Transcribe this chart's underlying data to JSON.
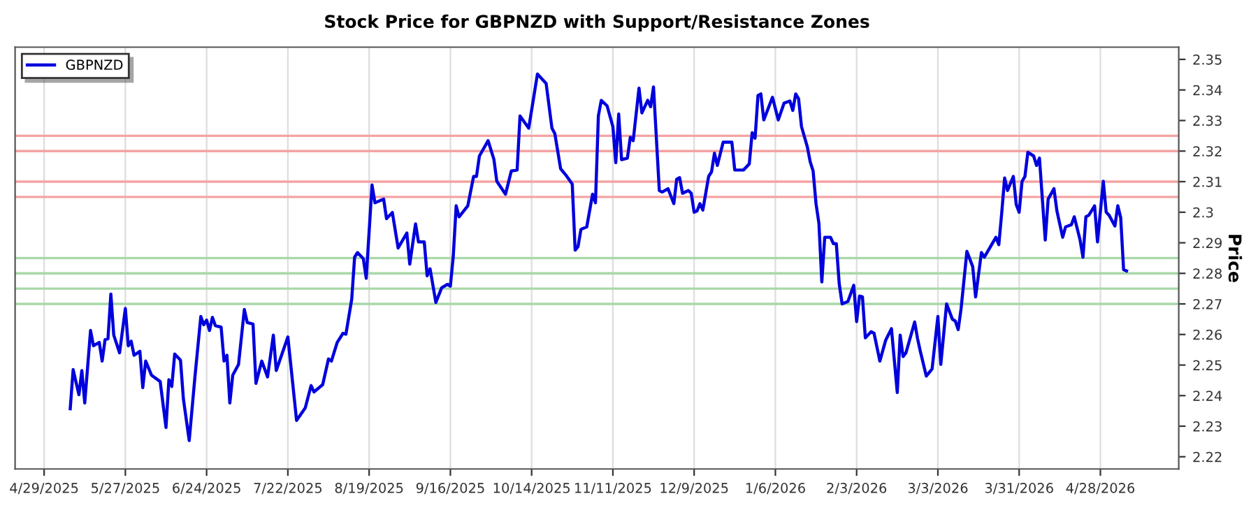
{
  "chart_data": {
    "type": "line",
    "title": "Stock Price for GBPNZD with Support/Resistance Zones",
    "ylabel": "Price",
    "x": [
      "2025-05-08",
      "2025-05-09",
      "2025-05-11",
      "2025-05-12",
      "2025-05-13",
      "2025-05-15",
      "2025-05-16",
      "2025-05-18",
      "2025-05-19",
      "2025-05-20",
      "2025-05-21",
      "2025-05-22",
      "2025-05-23",
      "2025-05-25",
      "2025-05-27",
      "2025-05-28",
      "2025-05-29",
      "2025-05-30",
      "2025-06-01",
      "2025-06-02",
      "2025-06-03",
      "2025-06-05",
      "2025-06-08",
      "2025-06-10",
      "2025-06-11",
      "2025-06-12",
      "2025-06-13",
      "2025-06-15",
      "2025-06-16",
      "2025-06-18",
      "2025-06-20",
      "2025-06-22",
      "2025-06-23",
      "2025-06-24",
      "2025-06-25",
      "2025-06-26",
      "2025-06-27",
      "2025-06-29",
      "2025-06-30",
      "2025-07-01",
      "2025-07-02",
      "2025-07-03",
      "2025-07-05",
      "2025-07-07",
      "2025-07-08",
      "2025-07-10",
      "2025-07-11",
      "2025-07-13",
      "2025-07-15",
      "2025-07-17",
      "2025-07-18",
      "2025-07-22",
      "2025-07-25",
      "2025-07-28",
      "2025-07-30",
      "2025-07-31",
      "2025-08-03",
      "2025-08-05",
      "2025-08-06",
      "2025-08-08",
      "2025-08-10",
      "2025-08-11",
      "2025-08-13",
      "2025-08-14",
      "2025-08-15",
      "2025-08-17",
      "2025-08-18",
      "2025-08-20",
      "2025-08-21",
      "2025-08-24",
      "2025-08-25",
      "2025-08-27",
      "2025-08-29",
      "2025-09-01",
      "2025-09-02",
      "2025-09-04",
      "2025-09-05",
      "2025-09-07",
      "2025-09-08",
      "2025-09-09",
      "2025-09-11",
      "2025-09-13",
      "2025-09-15",
      "2025-09-16",
      "2025-09-17",
      "2025-09-18",
      "2025-09-19",
      "2025-09-22",
      "2025-09-24",
      "2025-09-25",
      "2025-09-26",
      "2025-09-29",
      "2025-10-01",
      "2025-10-02",
      "2025-10-05",
      "2025-10-07",
      "2025-10-09",
      "2025-10-10",
      "2025-10-13",
      "2025-10-16",
      "2025-10-19",
      "2025-10-21",
      "2025-10-22",
      "2025-10-24",
      "2025-10-26",
      "2025-10-28",
      "2025-10-29",
      "2025-10-30",
      "2025-10-31",
      "2025-11-02",
      "2025-11-04",
      "2025-11-05",
      "2025-11-06",
      "2025-11-07",
      "2025-11-09",
      "2025-11-11",
      "2025-11-12",
      "2025-11-13",
      "2025-11-14",
      "2025-11-16",
      "2025-11-17",
      "2025-11-18",
      "2025-11-20",
      "2025-11-21",
      "2025-11-23",
      "2025-11-24",
      "2025-11-25",
      "2025-11-27",
      "2025-11-28",
      "2025-11-30",
      "2025-12-02",
      "2025-12-03",
      "2025-12-04",
      "2025-12-05",
      "2025-12-07",
      "2025-12-08",
      "2025-12-09",
      "2025-12-10",
      "2025-12-11",
      "2025-12-12",
      "2025-12-14",
      "2025-12-15",
      "2025-12-16",
      "2025-12-17",
      "2025-12-19",
      "2025-12-22",
      "2025-12-23",
      "2025-12-26",
      "2025-12-28",
      "2025-12-29",
      "2025-12-30",
      "2025-12-31",
      "2026-01-01",
      "2026-01-02",
      "2026-01-05",
      "2026-01-07",
      "2026-01-09",
      "2026-01-11",
      "2026-01-12",
      "2026-01-13",
      "2026-01-14",
      "2026-01-15",
      "2026-01-17",
      "2026-01-18",
      "2026-01-19",
      "2026-01-20",
      "2026-01-21",
      "2026-01-22",
      "2026-01-23",
      "2026-01-25",
      "2026-01-26",
      "2026-01-27",
      "2026-01-28",
      "2026-01-29",
      "2026-01-31",
      "2026-02-02",
      "2026-02-03",
      "2026-02-04",
      "2026-02-05",
      "2026-02-06",
      "2026-02-08",
      "2026-02-09",
      "2026-02-11",
      "2026-02-13",
      "2026-02-15",
      "2026-02-17",
      "2026-02-18",
      "2026-02-19",
      "2026-02-20",
      "2026-02-23",
      "2026-02-24",
      "2026-02-25",
      "2026-02-27",
      "2026-03-01",
      "2026-03-03",
      "2026-03-04",
      "2026-03-06",
      "2026-03-08",
      "2026-03-09",
      "2026-03-10",
      "2026-03-11",
      "2026-03-13",
      "2026-03-15",
      "2026-03-16",
      "2026-03-18",
      "2026-03-19",
      "2026-03-23",
      "2026-03-24",
      "2026-03-25",
      "2026-03-26",
      "2026-03-27",
      "2026-03-29",
      "2026-03-30",
      "2026-03-31",
      "2026-04-01",
      "2026-04-02",
      "2026-04-03",
      "2026-04-05",
      "2026-04-06",
      "2026-04-07",
      "2026-04-09",
      "2026-04-10",
      "2026-04-12",
      "2026-04-13",
      "2026-04-15",
      "2026-04-16",
      "2026-04-18",
      "2026-04-19",
      "2026-04-21",
      "2026-04-22",
      "2026-04-23",
      "2026-04-24",
      "2026-04-26",
      "2026-04-27",
      "2026-04-29",
      "2026-04-30",
      "2026-05-01",
      "2026-05-03",
      "2026-05-04",
      "2026-05-05",
      "2026-05-06",
      "2026-05-07"
    ],
    "series": [
      {
        "name": "GBPNZD",
        "color": "#0000dd",
        "values": [
          2.2357,
          2.2485,
          2.2403,
          2.2482,
          2.2376,
          2.2613,
          2.2563,
          2.2574,
          2.2513,
          2.2583,
          2.2586,
          2.2732,
          2.2598,
          2.254,
          2.2685,
          2.2563,
          2.2578,
          2.2532,
          2.2545,
          2.2426,
          2.2513,
          2.2467,
          2.2446,
          2.2296,
          2.2452,
          2.243,
          2.2536,
          2.2516,
          2.2389,
          2.2253,
          2.2464,
          2.2659,
          2.2632,
          2.2647,
          2.2613,
          2.2656,
          2.2629,
          2.2624,
          2.2513,
          2.2532,
          2.2376,
          2.2467,
          2.2502,
          2.2682,
          2.2639,
          2.2634,
          2.244,
          2.2513,
          2.2461,
          2.2598,
          2.2482,
          2.2592,
          2.2319,
          2.236,
          2.2433,
          2.2412,
          2.2436,
          2.252,
          2.2513,
          2.2574,
          2.2604,
          2.2601,
          2.2715,
          2.2853,
          2.2868,
          2.2848,
          2.2784,
          2.3089,
          2.3031,
          2.3043,
          2.2979,
          2.2999,
          2.2883,
          2.2932,
          2.283,
          2.2962,
          2.2903,
          2.2903,
          2.2792,
          2.2815,
          2.2705,
          2.2753,
          2.2764,
          2.2758,
          2.2857,
          2.3021,
          2.2985,
          2.3021,
          2.3117,
          2.3117,
          2.3184,
          2.3234,
          2.3173,
          2.3101,
          2.3059,
          2.3135,
          2.3138,
          2.3315,
          2.3275,
          2.3452,
          2.3421,
          2.3275,
          2.3257,
          2.3142,
          2.3119,
          2.3092,
          2.2876,
          2.2888,
          2.2944,
          2.2952,
          2.3059,
          2.3031,
          2.3315,
          2.3366,
          2.3348,
          2.328,
          2.3162,
          2.3321,
          2.3172,
          2.3177,
          2.3245,
          2.3234,
          2.3406,
          2.3325,
          2.3366,
          2.3345,
          2.341,
          2.3071,
          2.3066,
          2.3077,
          2.3028,
          2.3108,
          2.3113,
          2.3062,
          2.3071,
          2.3062,
          2.3,
          2.3004,
          2.3028,
          2.3007,
          2.3117,
          2.3132,
          2.3193,
          2.3153,
          2.3229,
          2.3229,
          2.3138,
          2.3138,
          2.3158,
          2.326,
          2.3242,
          2.3382,
          2.3387,
          2.3302,
          2.3376,
          2.3302,
          2.3357,
          2.3364,
          2.3333,
          2.3387,
          2.3371,
          2.328,
          2.3214,
          2.3165,
          2.3135,
          2.3028,
          2.2964,
          2.2772,
          2.2918,
          2.2918,
          2.2897,
          2.2897,
          2.2766,
          2.27,
          2.2708,
          2.2761,
          2.2642,
          2.2726,
          2.2723,
          2.2589,
          2.2609,
          2.2604,
          2.2513,
          2.2581,
          2.2619,
          2.241,
          2.2598,
          2.2528,
          2.254,
          2.2641,
          2.2586,
          2.2543,
          2.2464,
          2.2487,
          2.2659,
          2.2502,
          2.27,
          2.265,
          2.2644,
          2.2616,
          2.2685,
          2.2872,
          2.2822,
          2.2723,
          2.2868,
          2.2853,
          2.2918,
          2.2894,
          2.2998,
          2.3112,
          2.3071,
          2.3117,
          2.3025,
          2.3,
          2.3101,
          2.3117,
          2.3196,
          2.3184,
          2.3153,
          2.3177,
          2.2909,
          2.3043,
          2.3077,
          2.3005,
          2.2918,
          2.2952,
          2.2959,
          2.2985,
          2.2909,
          2.2853,
          2.2985,
          2.299,
          2.3021,
          2.2903,
          2.3101,
          2.3,
          2.299,
          2.2955,
          2.3021,
          2.2982,
          2.2812,
          2.2808
        ]
      }
    ],
    "ref_lines": [
      {
        "axis": "y",
        "value": 2.325,
        "color": "#f4a3a3"
      },
      {
        "axis": "y",
        "value": 2.32,
        "color": "#f4a3a3"
      },
      {
        "axis": "y",
        "value": 2.31,
        "color": "#f4a3a3"
      },
      {
        "axis": "y",
        "value": 2.305,
        "color": "#f4a3a3"
      },
      {
        "axis": "y",
        "value": 2.285,
        "color": "#a9d8a9"
      },
      {
        "axis": "y",
        "value": 2.28,
        "color": "#a9d8a9"
      },
      {
        "axis": "y",
        "value": 2.275,
        "color": "#a9d8a9"
      },
      {
        "axis": "y",
        "value": 2.27,
        "color": "#a9d8a9"
      }
    ],
    "xlim": [
      "2025-04-19",
      "2026-05-25"
    ],
    "xticks": [
      {
        "value": "2025-04-29",
        "label": "4/29/2025"
      },
      {
        "value": "2025-05-27",
        "label": "5/27/2025"
      },
      {
        "value": "2025-06-24",
        "label": "6/24/2025"
      },
      {
        "value": "2025-07-22",
        "label": "7/22/2025"
      },
      {
        "value": "2025-08-19",
        "label": "8/19/2025"
      },
      {
        "value": "2025-09-16",
        "label": "9/16/2025"
      },
      {
        "value": "2025-10-14",
        "label": "10/14/2025"
      },
      {
        "value": "2025-11-11",
        "label": "11/11/2025"
      },
      {
        "value": "2025-12-09",
        "label": "12/9/2025"
      },
      {
        "value": "2026-01-06",
        "label": "1/6/2026"
      },
      {
        "value": "2026-02-03",
        "label": "2/3/2026"
      },
      {
        "value": "2026-03-03",
        "label": "3/3/2026"
      },
      {
        "value": "2026-03-31",
        "label": "3/31/2026"
      },
      {
        "value": "2026-04-28",
        "label": "4/28/2026"
      }
    ],
    "ylim": [
      2.216,
      2.354
    ],
    "yticks": [
      2.22,
      2.23,
      2.24,
      2.25,
      2.26,
      2.27,
      2.28,
      2.29,
      2.3,
      2.31,
      2.32,
      2.33,
      2.34,
      2.35
    ],
    "grid": "x",
    "legend": "top left",
    "line_style": "solid",
    "marker": "none"
  }
}
